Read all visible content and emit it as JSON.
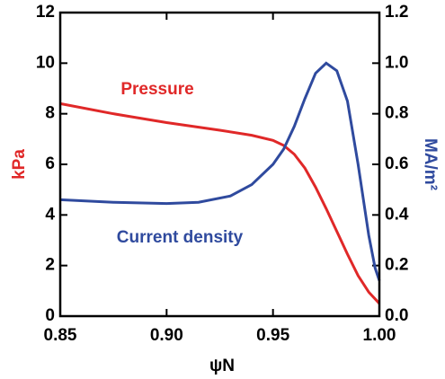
{
  "chart_data": {
    "type": "line",
    "xlabel": "ψN",
    "ylabel": "kPa",
    "y2label": "MA/m²",
    "xlim": [
      0.85,
      1.0
    ],
    "xticks": [
      {
        "value": 0.85,
        "label": "0.85"
      },
      {
        "value": 0.9,
        "label": "0.90"
      },
      {
        "value": 0.95,
        "label": "0.95"
      },
      {
        "value": 1.0,
        "label": "1.00"
      }
    ],
    "ylim": [
      0,
      12
    ],
    "yticks": [
      0,
      2,
      4,
      6,
      8,
      10,
      12
    ],
    "y2lim": [
      0,
      1.2
    ],
    "y2ticks": [
      {
        "value": 0,
        "label": "0.0"
      },
      {
        "value": 0.2,
        "label": "0.2"
      },
      {
        "value": 0.4,
        "label": "0.4"
      },
      {
        "value": 0.6,
        "label": "0.6"
      },
      {
        "value": 0.8,
        "label": "0.8"
      },
      {
        "value": 1.0,
        "label": "1.0"
      },
      {
        "value": 1.2,
        "label": "1.2"
      }
    ],
    "ylabel_color": "#e02828",
    "y2label_color": "#2f4a9e",
    "series": [
      {
        "name": "Pressure",
        "color": "#e02828",
        "x": [
          0.85,
          0.875,
          0.9,
          0.925,
          0.94,
          0.95,
          0.955,
          0.96,
          0.965,
          0.97,
          0.975,
          0.98,
          0.985,
          0.99,
          0.995,
          1.0
        ],
        "values": [
          8.4,
          8.0,
          7.65,
          7.35,
          7.15,
          6.95,
          6.75,
          6.4,
          5.85,
          5.1,
          4.25,
          3.35,
          2.45,
          1.6,
          0.95,
          0.5
        ]
      },
      {
        "name": "Current density",
        "color": "#2f4a9e",
        "axis": "y2",
        "x": [
          0.85,
          0.875,
          0.9,
          0.915,
          0.93,
          0.94,
          0.95,
          0.955,
          0.96,
          0.965,
          0.97,
          0.975,
          0.98,
          0.985,
          0.99,
          0.995,
          0.998,
          1.0
        ],
        "values": [
          0.46,
          0.45,
          0.445,
          0.45,
          0.475,
          0.52,
          0.6,
          0.66,
          0.75,
          0.86,
          0.96,
          1.0,
          0.97,
          0.85,
          0.6,
          0.32,
          0.19,
          0.14
        ]
      }
    ]
  }
}
